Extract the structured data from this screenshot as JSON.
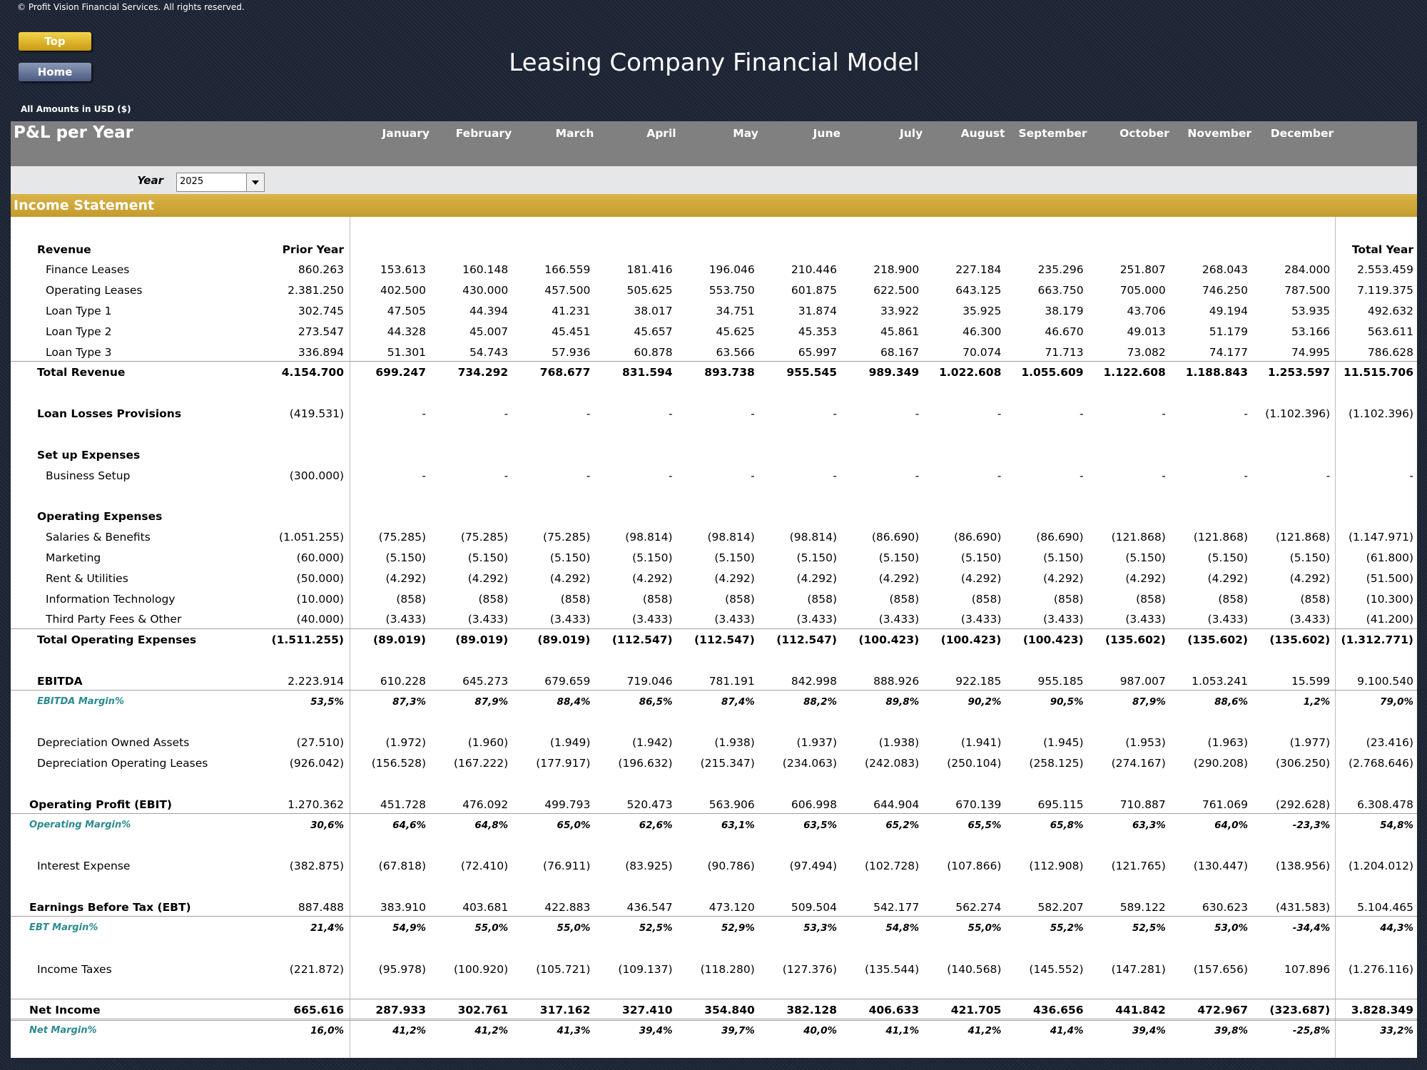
{
  "header": {
    "copyright": "© Profit Vision Financial Services. All rights reserved.",
    "buttons": [
      "Top",
      "Home"
    ],
    "title": "Leasing Company Financial Model",
    "amounts": "All Amounts in  USD ($)"
  },
  "section": {
    "title": "P&L per Year",
    "months": [
      "January",
      "February",
      "March",
      "April",
      "May",
      "June",
      "July",
      "August",
      "September",
      "October",
      "November",
      "December"
    ],
    "year_label": "Year",
    "year_value": "2025",
    "statement": "Income Statement"
  },
  "table": {
    "prior_header": "Prior Year",
    "total_header": "Total Year",
    "rows": [
      {
        "label": "Revenue",
        "kind": "section"
      },
      {
        "label": "Finance Leases",
        "kind": "item",
        "cells": [
          "860.263",
          "153.613",
          "160.148",
          "166.559",
          "181.416",
          "196.046",
          "210.446",
          "218.900",
          "227.184",
          "235.296",
          "251.807",
          "268.043",
          "284.000",
          "2.553.459"
        ]
      },
      {
        "label": "Operating Leases",
        "kind": "item",
        "cells": [
          "2.381.250",
          "402.500",
          "430.000",
          "457.500",
          "505.625",
          "553.750",
          "601.875",
          "622.500",
          "643.125",
          "663.750",
          "705.000",
          "746.250",
          "787.500",
          "7.119.375"
        ]
      },
      {
        "label": "Loan Type 1",
        "kind": "item",
        "cells": [
          "302.745",
          "47.505",
          "44.394",
          "41.231",
          "38.017",
          "34.751",
          "31.874",
          "33.922",
          "35.925",
          "38.179",
          "43.706",
          "49.194",
          "53.935",
          "492.632"
        ]
      },
      {
        "label": "Loan Type 2",
        "kind": "item",
        "cells": [
          "273.547",
          "44.328",
          "45.007",
          "45.451",
          "45.657",
          "45.625",
          "45.353",
          "45.861",
          "46.300",
          "46.670",
          "49.013",
          "51.179",
          "53.166",
          "563.611"
        ]
      },
      {
        "label": "Loan Type 3",
        "kind": "item",
        "cells": [
          "336.894",
          "51.301",
          "54.743",
          "57.936",
          "60.878",
          "63.566",
          "65.997",
          "68.167",
          "70.074",
          "71.713",
          "73.082",
          "74.177",
          "74.995",
          "786.628"
        ]
      },
      {
        "label": "Total Revenue",
        "kind": "total",
        "cells": [
          "4.154.700",
          "699.247",
          "734.292",
          "768.677",
          "831.594",
          "893.738",
          "955.545",
          "989.349",
          "1.022.608",
          "1.055.609",
          "1.122.608",
          "1.188.843",
          "1.253.597",
          "11.515.706"
        ]
      },
      {
        "label": "Loan Losses Provisions",
        "kind": "bold-line",
        "cells": [
          "(419.531)",
          "-",
          "-",
          "-",
          "-",
          "-",
          "-",
          "-",
          "-",
          "-",
          "-",
          "-",
          "(1.102.396)",
          "(1.102.396)"
        ]
      },
      {
        "label": "Set up Expenses",
        "kind": "section"
      },
      {
        "label": "Business Setup",
        "kind": "item",
        "cells": [
          "(300.000)",
          "-",
          "-",
          "-",
          "-",
          "-",
          "-",
          "-",
          "-",
          "-",
          "-",
          "-",
          "-",
          "-"
        ]
      },
      {
        "label": "Operating Expenses",
        "kind": "section"
      },
      {
        "label": "Salaries & Benefits",
        "kind": "item",
        "cells": [
          "(1.051.255)",
          "(75.285)",
          "(75.285)",
          "(75.285)",
          "(98.814)",
          "(98.814)",
          "(98.814)",
          "(86.690)",
          "(86.690)",
          "(86.690)",
          "(121.868)",
          "(121.868)",
          "(121.868)",
          "(1.147.971)"
        ]
      },
      {
        "label": "Marketing",
        "kind": "item",
        "cells": [
          "(60.000)",
          "(5.150)",
          "(5.150)",
          "(5.150)",
          "(5.150)",
          "(5.150)",
          "(5.150)",
          "(5.150)",
          "(5.150)",
          "(5.150)",
          "(5.150)",
          "(5.150)",
          "(5.150)",
          "(61.800)"
        ]
      },
      {
        "label": "Rent & Utilities",
        "kind": "item",
        "cells": [
          "(50.000)",
          "(4.292)",
          "(4.292)",
          "(4.292)",
          "(4.292)",
          "(4.292)",
          "(4.292)",
          "(4.292)",
          "(4.292)",
          "(4.292)",
          "(4.292)",
          "(4.292)",
          "(4.292)",
          "(51.500)"
        ]
      },
      {
        "label": "Information Technology",
        "kind": "item",
        "cells": [
          "(10.000)",
          "(858)",
          "(858)",
          "(858)",
          "(858)",
          "(858)",
          "(858)",
          "(858)",
          "(858)",
          "(858)",
          "(858)",
          "(858)",
          "(858)",
          "(10.300)"
        ]
      },
      {
        "label": "Third Party Fees & Other",
        "kind": "item",
        "cells": [
          "(40.000)",
          "(3.433)",
          "(3.433)",
          "(3.433)",
          "(3.433)",
          "(3.433)",
          "(3.433)",
          "(3.433)",
          "(3.433)",
          "(3.433)",
          "(3.433)",
          "(3.433)",
          "(3.433)",
          "(41.200)"
        ]
      },
      {
        "label": "Total Operating Expenses",
        "kind": "total",
        "cells": [
          "(1.511.255)",
          "(89.019)",
          "(89.019)",
          "(89.019)",
          "(112.547)",
          "(112.547)",
          "(112.547)",
          "(100.423)",
          "(100.423)",
          "(100.423)",
          "(135.602)",
          "(135.602)",
          "(135.602)",
          "(1.312.771)"
        ]
      },
      {
        "label": "EBITDA",
        "kind": "subtotal",
        "cells": [
          "2.223.914",
          "610.228",
          "645.273",
          "679.659",
          "719.046",
          "781.191",
          "842.998",
          "888.926",
          "922.185",
          "955.185",
          "987.007",
          "1.053.241",
          "15.599",
          "9.100.540"
        ]
      },
      {
        "label": "EBITDA Margin%",
        "kind": "margin-indent",
        "cells": [
          "53,5%",
          "87,3%",
          "87,9%",
          "88,4%",
          "86,5%",
          "87,4%",
          "88,2%",
          "89,8%",
          "90,2%",
          "90,5%",
          "87,9%",
          "88,6%",
          "1,2%",
          "79,0%"
        ]
      },
      {
        "label": "Depreciation Owned Assets",
        "kind": "line",
        "cells": [
          "(27.510)",
          "(1.972)",
          "(1.960)",
          "(1.949)",
          "(1.942)",
          "(1.938)",
          "(1.937)",
          "(1.938)",
          "(1.941)",
          "(1.945)",
          "(1.953)",
          "(1.963)",
          "(1.977)",
          "(23.416)"
        ]
      },
      {
        "label": "Depreciation Operating Leases",
        "kind": "line",
        "cells": [
          "(926.042)",
          "(156.528)",
          "(167.222)",
          "(177.917)",
          "(196.632)",
          "(215.347)",
          "(234.063)",
          "(242.083)",
          "(250.104)",
          "(258.125)",
          "(274.167)",
          "(290.208)",
          "(306.250)",
          "(2.768.646)"
        ]
      },
      {
        "label": "Operating Profit (EBIT)",
        "kind": "major",
        "cells": [
          "1.270.362",
          "451.728",
          "476.092",
          "499.793",
          "520.473",
          "563.906",
          "606.998",
          "644.904",
          "670.139",
          "695.115",
          "710.887",
          "761.069",
          "(292.628)",
          "6.308.478"
        ]
      },
      {
        "label": "Operating Margin%",
        "kind": "margin",
        "cells": [
          "30,6%",
          "64,6%",
          "64,8%",
          "65,0%",
          "62,6%",
          "63,1%",
          "63,5%",
          "65,2%",
          "65,5%",
          "65,8%",
          "63,3%",
          "64,0%",
          "-23,3%",
          "54,8%"
        ]
      },
      {
        "label": "Interest Expense",
        "kind": "line",
        "cells": [
          "(382.875)",
          "(67.818)",
          "(72.410)",
          "(76.911)",
          "(83.925)",
          "(90.786)",
          "(97.494)",
          "(102.728)",
          "(107.866)",
          "(112.908)",
          "(121.765)",
          "(130.447)",
          "(138.956)",
          "(1.204.012)"
        ]
      },
      {
        "label": "Earnings Before Tax (EBT)",
        "kind": "major",
        "cells": [
          "887.488",
          "383.910",
          "403.681",
          "422.883",
          "436.547",
          "473.120",
          "509.504",
          "542.177",
          "562.274",
          "582.207",
          "589.122",
          "630.623",
          "(431.583)",
          "5.104.465"
        ]
      },
      {
        "label": "EBT Margin%",
        "kind": "margin",
        "cells": [
          "21,4%",
          "54,9%",
          "55,0%",
          "55,0%",
          "52,5%",
          "52,9%",
          "53,3%",
          "54,8%",
          "55,0%",
          "55,2%",
          "52,5%",
          "53,0%",
          "-34,4%",
          "44,3%"
        ]
      },
      {
        "label": "Income Taxes",
        "kind": "line",
        "cells": [
          "(221.872)",
          "(95.978)",
          "(100.920)",
          "(105.721)",
          "(109.137)",
          "(118.280)",
          "(127.376)",
          "(135.544)",
          "(140.568)",
          "(145.552)",
          "(147.281)",
          "(157.656)",
          "107.896",
          "(1.276.116)"
        ]
      },
      {
        "label": "Net Income",
        "kind": "net",
        "cells": [
          "665.616",
          "287.933",
          "302.761",
          "317.162",
          "327.410",
          "354.840",
          "382.128",
          "406.633",
          "421.705",
          "436.656",
          "441.842",
          "472.967",
          "(323.687)",
          "3.828.349"
        ]
      },
      {
        "label": "Net Margin%",
        "kind": "margin",
        "cells": [
          "16,0%",
          "41,2%",
          "41,2%",
          "41,3%",
          "39,4%",
          "39,7%",
          "40,0%",
          "41,1%",
          "41,2%",
          "41,4%",
          "39,4%",
          "39,8%",
          "-25,8%",
          "33,2%"
        ]
      }
    ]
  }
}
